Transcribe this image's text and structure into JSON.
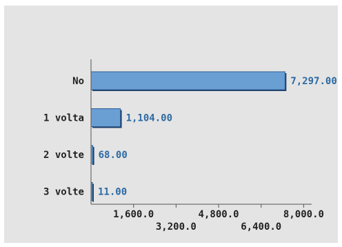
{
  "chart_data": {
    "type": "bar",
    "orientation": "horizontal",
    "categories": [
      "No",
      "1 volta",
      "2 volte",
      "3 volte"
    ],
    "values": [
      7297,
      1104,
      68,
      11
    ],
    "value_labels": [
      "7,297.00",
      "1,104.00",
      "68.00",
      "11.00"
    ],
    "x_ticks": [
      1600,
      3200,
      4800,
      6400,
      8000
    ],
    "x_tick_labels": [
      "1,600.0",
      "3,200.0",
      "4,800.0",
      "6,400.0",
      "8,000.0"
    ],
    "xlim": [
      0,
      8300
    ],
    "grid": false,
    "legend": "none",
    "colors": {
      "bar_fill": "#6a9fd4",
      "bar_edge": "#2f5f93",
      "bar_shadow": "#1f3f66",
      "value_label": "#2c6aa3",
      "axis": "#555555",
      "background": "#e4e4e4"
    }
  }
}
